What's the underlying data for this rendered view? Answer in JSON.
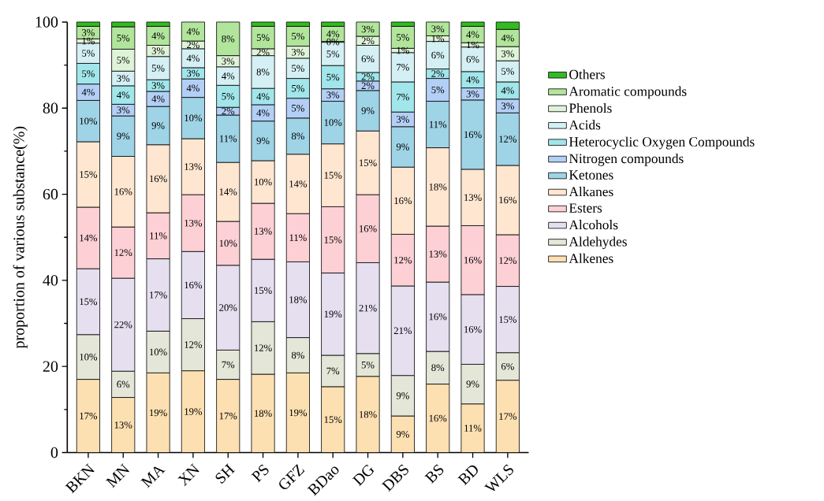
{
  "chart_data": {
    "type": "bar",
    "stacked": true,
    "ylabel": "proportion of various substance(%)",
    "ylim": [
      0,
      100
    ],
    "yticks": [
      0,
      20,
      40,
      60,
      80,
      100
    ],
    "legend": "right",
    "categories": [
      "BKN",
      "MN",
      "MA",
      "XN",
      "SH",
      "PS",
      "GFZ",
      "BDao",
      "DG",
      "DBS",
      "BS",
      "BD",
      "WLS"
    ],
    "series": [
      {
        "name": "Alkenes",
        "color": "#fde0b2",
        "values": [
          17.0,
          12.8,
          18.5,
          19.0,
          17.0,
          18.2,
          18.5,
          15.3,
          17.7,
          8.5,
          15.9,
          11.3,
          16.8
        ],
        "value_labels": [
          "17%",
          "13%",
          "19%",
          "19%",
          "17%",
          "18%",
          "19%",
          "15%",
          "18%",
          "9%",
          "16%",
          "11%",
          "17%"
        ]
      },
      {
        "name": "Aldehydes",
        "color": "#e4e6d8",
        "values": [
          10.4,
          6.1,
          9.7,
          12.1,
          6.8,
          12.2,
          8.2,
          7.3,
          5.3,
          9.4,
          7.6,
          9.2,
          6.4
        ],
        "value_labels": [
          "10%",
          "6%",
          "10%",
          "12%",
          "7%",
          "12%",
          "8%",
          "7%",
          "5%",
          "9%",
          "8%",
          "9%",
          "6%"
        ]
      },
      {
        "name": "Alcohols",
        "color": "#e5dff0",
        "values": [
          15.3,
          21.6,
          16.8,
          15.6,
          19.7,
          14.5,
          17.6,
          19.1,
          21.1,
          20.8,
          16.1,
          16.2,
          15.4
        ],
        "value_labels": [
          "15%",
          "22%",
          "17%",
          "16%",
          "20%",
          "15%",
          "18%",
          "19%",
          "21%",
          "21%",
          "16%",
          "16%",
          "15%"
        ]
      },
      {
        "name": "Esters",
        "color": "#fdd0d5",
        "values": [
          14.3,
          11.9,
          10.7,
          13.2,
          10.2,
          13.0,
          11.2,
          15.4,
          15.8,
          12.0,
          13.0,
          16.0,
          12.0
        ],
        "value_labels": [
          "14%",
          "12%",
          "11%",
          "13%",
          "10%",
          "13%",
          "11%",
          "15%",
          "16%",
          "12%",
          "13%",
          "16%",
          "12%"
        ]
      },
      {
        "name": "Alkanes",
        "color": "#fee6d0",
        "values": [
          15.2,
          16.4,
          15.8,
          13.0,
          13.7,
          9.9,
          13.8,
          14.6,
          14.8,
          15.6,
          18.2,
          13.1,
          16.1
        ],
        "value_labels": [
          "15%",
          "16%",
          "16%",
          "13%",
          "14%",
          "10%",
          "14%",
          "15%",
          "15%",
          "16%",
          "18%",
          "13%",
          "16%"
        ]
      },
      {
        "name": "Ketones",
        "color": "#9fd3e6",
        "values": [
          9.6,
          9.4,
          8.9,
          9.6,
          11.0,
          9.2,
          8.4,
          9.9,
          9.4,
          9.4,
          10.8,
          16.1,
          12.2
        ],
        "value_labels": [
          "10%",
          "9%",
          "9%",
          "10%",
          "11%",
          "9%",
          "8%",
          "10%",
          "9%",
          "9%",
          "11%",
          "16%",
          "12%"
        ]
      },
      {
        "name": "Nitrogen compounds",
        "color": "#b3cff6",
        "values": [
          3.8,
          2.7,
          3.5,
          4.3,
          1.8,
          3.8,
          4.6,
          2.9,
          2.2,
          3.4,
          5.3,
          2.8,
          3.2
        ],
        "value_labels": [
          "4%",
          "3%",
          "4%",
          "4%",
          "2%",
          "4%",
          "5%",
          "3%",
          "2%",
          "3%",
          "5%",
          "3%",
          "3%"
        ]
      },
      {
        "name": "Heterocyclic Oxygen Compounds",
        "color": "#a1e6ea",
        "values": [
          4.8,
          4.3,
          2.7,
          2.6,
          5.1,
          3.8,
          4.6,
          5.4,
          2.0,
          7.0,
          2.2,
          3.8,
          4.0
        ],
        "value_labels": [
          "5%",
          "4%",
          "3%",
          "3%",
          "5%",
          "4%",
          "5%",
          "5%",
          "2%",
          "7%",
          "2%",
          "4%",
          "4%"
        ]
      },
      {
        "name": "Acids",
        "color": "#d5f0f4",
        "values": [
          4.7,
          3.4,
          5.4,
          4.4,
          4.3,
          7.6,
          4.7,
          5.4,
          6.3,
          6.8,
          6.4,
          5.7,
          4.9
        ],
        "value_labels": [
          "5%",
          "3%",
          "5%",
          "4%",
          "4%",
          "8%",
          "5%",
          "5%",
          "6%",
          "7%",
          "6%",
          "6%",
          "5%"
        ]
      },
      {
        "name": "Phenols",
        "color": "#dff3d8",
        "values": [
          1.0,
          5.1,
          2.6,
          1.8,
          2.6,
          1.6,
          2.8,
          0.2,
          2.1,
          1.0,
          1.3,
          1.0,
          3.3
        ],
        "value_labels": [
          "1%",
          "5%",
          "3%",
          "2%",
          "3%",
          "2%",
          "3%",
          "0%",
          "2%",
          "1%",
          "1%",
          "1%",
          "3%"
        ]
      },
      {
        "name": "Aromatic compounds",
        "color": "#b2e59c",
        "values": [
          2.9,
          5.2,
          4.4,
          4.4,
          7.8,
          5.2,
          4.6,
          3.5,
          3.3,
          5.1,
          3.2,
          3.8,
          4.0
        ],
        "value_labels": [
          "3%",
          "5%",
          "4%",
          "4%",
          "8%",
          "5%",
          "5%",
          "4%",
          "3%",
          "5%",
          "3%",
          "4%",
          "4%"
        ]
      },
      {
        "name": "Others",
        "color": "#33bb22",
        "values": [
          1.0,
          1.1,
          1.0,
          null,
          null,
          1.0,
          1.0,
          1.0,
          null,
          1.0,
          null,
          1.0,
          1.7
        ]
      }
    ]
  }
}
